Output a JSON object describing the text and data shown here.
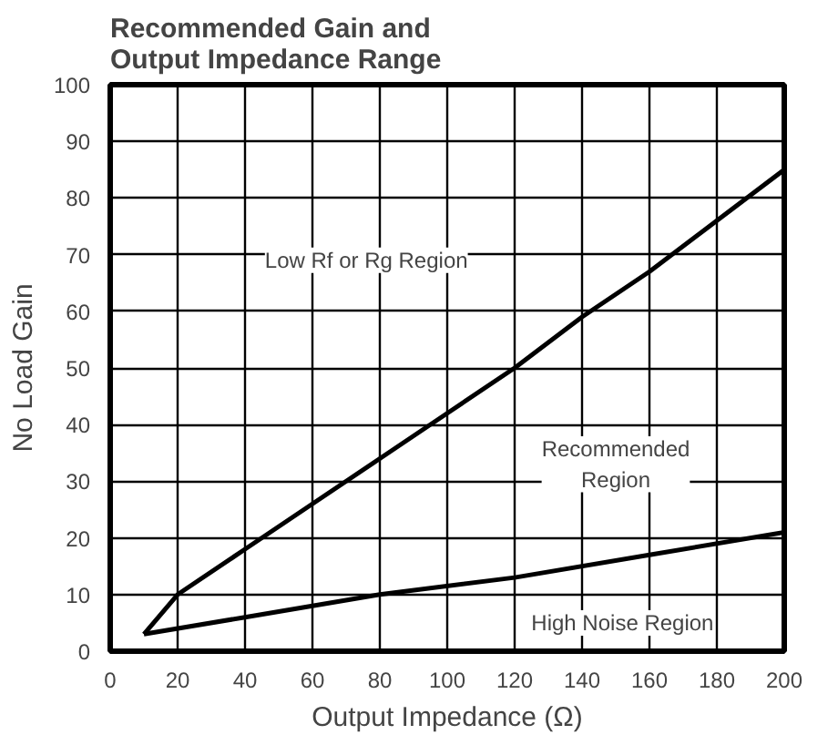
{
  "chart_data": {
    "type": "line",
    "title": "Recommended Gain and\nOutput Impedance Range",
    "xlabel": "Output Impedance (Ω)",
    "ylabel": "No Load Gain",
    "xlim": [
      0,
      200
    ],
    "ylim": [
      0,
      100
    ],
    "xticks": [
      0,
      20,
      40,
      60,
      80,
      100,
      120,
      140,
      160,
      180,
      200
    ],
    "yticks": [
      0,
      10,
      20,
      30,
      40,
      50,
      60,
      70,
      80,
      90,
      100
    ],
    "grid": true,
    "marker": "none",
    "line_style": "solid",
    "series": [
      {
        "color": "#000000",
        "x": [
          10,
          20,
          40,
          60,
          80,
          100,
          120,
          140,
          160,
          180,
          200
        ],
        "values": [
          3,
          10,
          18,
          26,
          34,
          42,
          50,
          59,
          67,
          76,
          85
        ]
      },
      {
        "color": "#000000",
        "x": [
          10,
          40,
          80,
          120,
          160,
          200
        ],
        "values": [
          3,
          6,
          10,
          13,
          17,
          21
        ]
      }
    ],
    "annotations": [
      "Low Rf or Rg Region",
      "Recommended\nRegion",
      "High Noise Region"
    ]
  }
}
